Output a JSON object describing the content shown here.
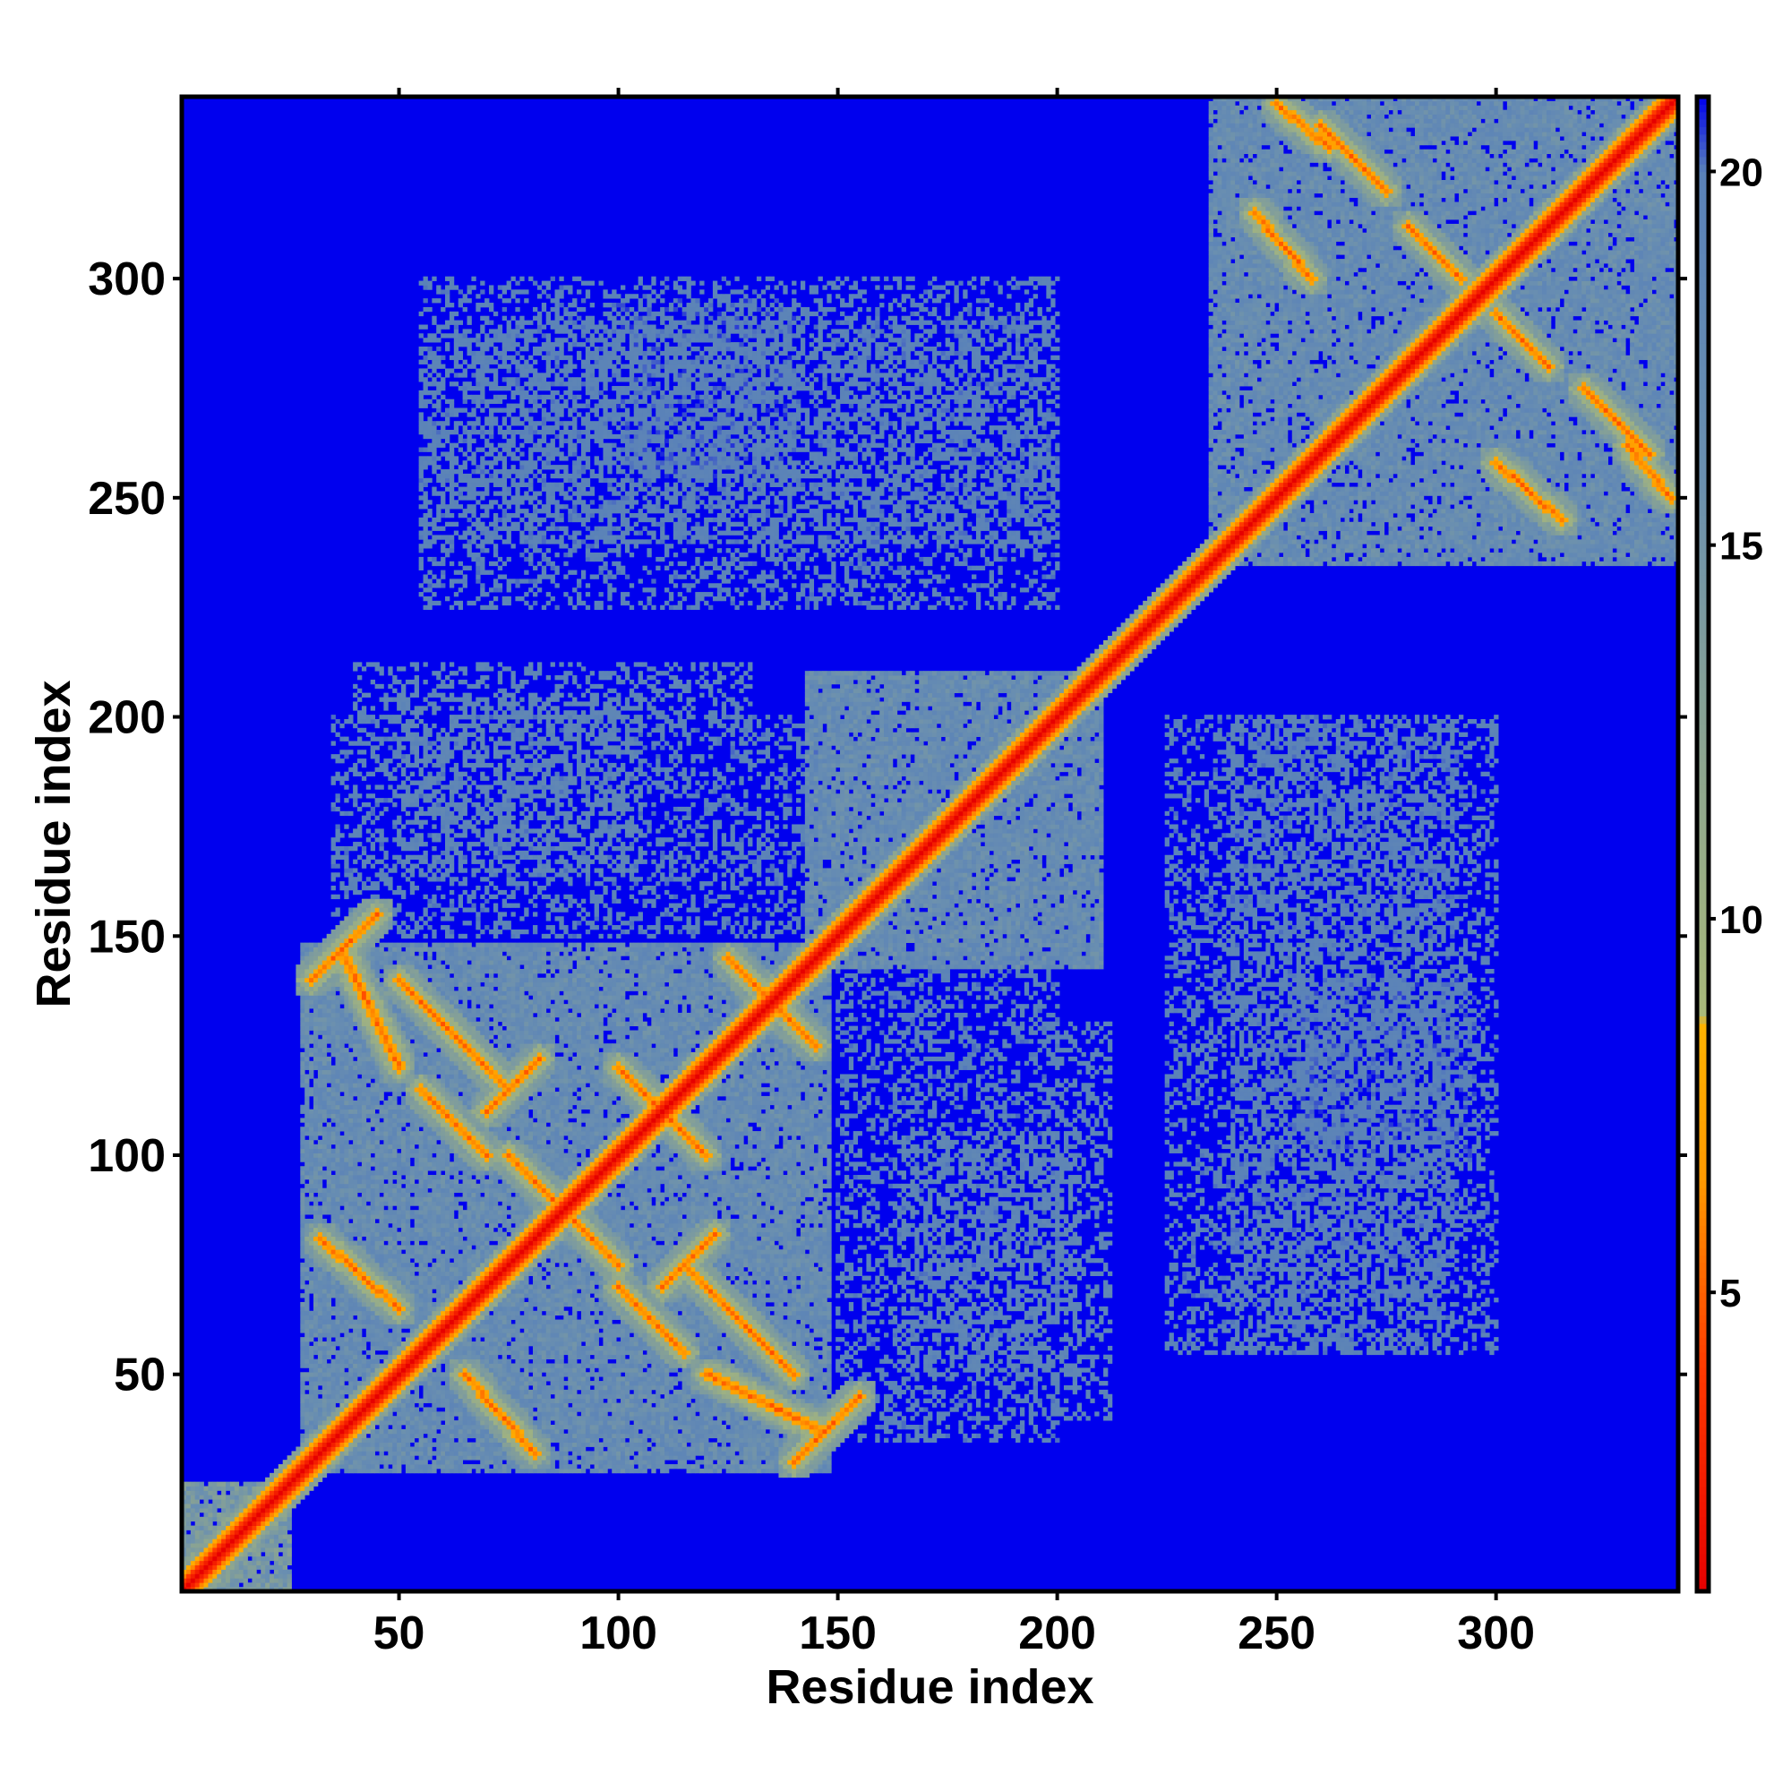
{
  "chart_data": {
    "type": "heatmap",
    "title": "",
    "xlabel": "Residue index",
    "ylabel": "Residue index",
    "xlim": [
      1,
      341
    ],
    "ylim": [
      1,
      341
    ],
    "x_ticks": [
      50,
      100,
      150,
      200,
      250,
      300
    ],
    "y_ticks": [
      50,
      100,
      150,
      200,
      250,
      300
    ],
    "x_tick_labels": [
      "50",
      "100",
      "150",
      "200",
      "250",
      "300"
    ],
    "y_tick_labels": [
      "50",
      "100",
      "150",
      "200",
      "250",
      "300"
    ],
    "value_range": [
      1,
      21
    ],
    "colorbar": {
      "ticks": [
        5,
        10,
        15,
        20
      ],
      "tick_labels": [
        "5",
        "10",
        "15",
        "20"
      ],
      "stops": [
        {
          "value": 1,
          "color": "#e60000"
        },
        {
          "value": 4,
          "color": "#ff3a00"
        },
        {
          "value": 6.5,
          "color": "#ff9900"
        },
        {
          "value": 8.6,
          "color": "#ffb300"
        },
        {
          "value": 8.7,
          "color": "#a9b97a"
        },
        {
          "value": 12,
          "color": "#8ea68f"
        },
        {
          "value": 16,
          "color": "#6a8fb0"
        },
        {
          "value": 20,
          "color": "#5a82b8"
        },
        {
          "value": 21,
          "color": "#0000ee"
        }
      ]
    },
    "background_value": 21,
    "diagonal": {
      "width": 3,
      "value": 1
    },
    "domains": [
      {
        "from": 1,
        "to": 25,
        "fill": 15
      },
      {
        "from": 28,
        "to": 148,
        "fill": 17.5
      },
      {
        "from": 143,
        "to": 210,
        "fill": 17.5
      },
      {
        "from": 235,
        "to": 341,
        "fill": 17.5
      }
    ],
    "inter_domain_patches": [
      {
        "x": [
          50,
          105
        ],
        "y": [
          165,
          205
        ],
        "fill": 18
      },
      {
        "x": [
          40,
          130
        ],
        "y": [
          200,
          212
        ],
        "fill": 18.5
      },
      {
        "x": [
          55,
          200
        ],
        "y": [
          240,
          290
        ],
        "fill": 19
      },
      {
        "x": [
          150,
          200
        ],
        "y": [
          35,
          145
        ],
        "fill": 19
      },
      {
        "x": [
          225,
          300
        ],
        "y": [
          55,
          200
        ],
        "fill": 19
      },
      {
        "x": [
          255,
          295
        ],
        "y": [
          100,
          140
        ],
        "fill": 19.5
      }
    ],
    "beta_contacts": [
      {
        "type": "anti",
        "a0": 32,
        "a1": 50,
        "b0": 65,
        "b1": 81
      },
      {
        "type": "anti",
        "a0": 55,
        "a1": 70,
        "b0": 100,
        "b1": 115
      },
      {
        "type": "anti",
        "a0": 60,
        "a1": 75,
        "b0": 115,
        "b1": 130
      },
      {
        "type": "anti",
        "a0": 50,
        "a1": 65,
        "b0": 125,
        "b1": 140
      },
      {
        "type": "anti",
        "a0": 37,
        "a1": 50,
        "b0": 120,
        "b1": 147
      },
      {
        "type": "anti",
        "a0": 75,
        "a1": 85,
        "b0": 90,
        "b1": 100
      },
      {
        "type": "anti",
        "a0": 100,
        "a1": 110,
        "b0": 110,
        "b1": 120
      },
      {
        "type": "anti",
        "a0": 125,
        "a1": 135,
        "b0": 135,
        "b1": 145
      },
      {
        "type": "anti",
        "a0": 245,
        "a1": 258,
        "b0": 300,
        "b1": 315
      },
      {
        "type": "anti",
        "a0": 260,
        "a1": 275,
        "b0": 320,
        "b1": 335
      },
      {
        "type": "anti",
        "a0": 280,
        "a1": 292,
        "b0": 300,
        "b1": 312
      },
      {
        "type": "anti",
        "a0": 250,
        "a1": 262,
        "b0": 330,
        "b1": 340
      },
      {
        "type": "par",
        "a0": 30,
        "a1": 45,
        "b0": 140,
        "b1": 155
      },
      {
        "type": "par",
        "a0": 70,
        "a1": 82,
        "b0": 110,
        "b1": 122
      }
    ]
  }
}
